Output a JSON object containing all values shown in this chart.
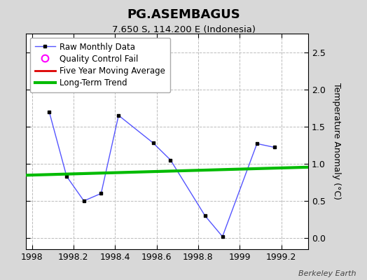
{
  "title": "PG.ASEMBAGUS",
  "subtitle": "7.650 S, 114.200 E (Indonesia)",
  "ylabel": "Temperature Anomaly (°C)",
  "raw_x": [
    1998.083,
    1998.167,
    1998.25,
    1998.333,
    1998.417,
    1998.583,
    1998.667,
    1998.833,
    1998.917,
    1999.083,
    1999.167
  ],
  "raw_y": [
    1.7,
    0.83,
    0.5,
    0.6,
    1.65,
    1.28,
    1.05,
    0.3,
    0.02,
    1.27,
    1.22
  ],
  "trend_x": [
    1997.97,
    1999.35
  ],
  "trend_y": [
    0.845,
    0.955
  ],
  "xlim": [
    1997.97,
    1999.33
  ],
  "ylim": [
    -0.15,
    2.75
  ],
  "yticks": [
    0,
    0.5,
    1.0,
    1.5,
    2.0,
    2.5
  ],
  "xticks": [
    1998.0,
    1998.2,
    1998.4,
    1998.6,
    1998.8,
    1999.0,
    1999.2
  ],
  "raw_line_color": "#5555ff",
  "raw_marker_color": "#000000",
  "trend_color": "#00bb00",
  "ma_color": "#dd0000",
  "qc_color": "#ff00ff",
  "bg_color": "#d8d8d8",
  "plot_bg": "#ffffff",
  "grid_color": "#bbbbbb",
  "watermark": "Berkeley Earth"
}
